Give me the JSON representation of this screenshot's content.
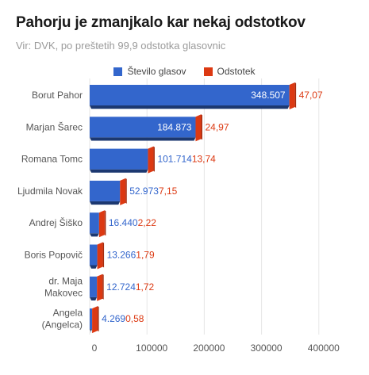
{
  "title": "Pahorju je zmanjkalo kar nekaj odstotkov",
  "subtitle": "Vir: DVK, po preštetih 99,9 odstotka glasovnic",
  "legend": [
    {
      "label": "Število glasov",
      "color": "#3366cc"
    },
    {
      "label": "Odstotek",
      "color": "#dc3912"
    }
  ],
  "chart_data": {
    "type": "bar",
    "orientation": "horizontal",
    "categories": [
      [
        "Borut Pahor"
      ],
      [
        "Marjan Šarec"
      ],
      [
        "Romana Tomc"
      ],
      [
        "Ljudmila Novak"
      ],
      [
        "Andrej Šiško"
      ],
      [
        "Boris Popovič"
      ],
      [
        "dr. Maja",
        "Makovec"
      ],
      [
        "Angela",
        "(Angelca)"
      ]
    ],
    "series": [
      {
        "name": "Število glasov",
        "color": "#3366cc",
        "values": [
          348507,
          184873,
          101714,
          52973,
          16440,
          13266,
          12724,
          4269
        ],
        "labels": [
          "348.507",
          "184.873",
          "101.714",
          "52.973",
          "16.440",
          "13.266",
          "12.724",
          "4.269"
        ]
      },
      {
        "name": "Odstotek",
        "color": "#dc3912",
        "values": [
          47.07,
          24.97,
          13.74,
          7.15,
          2.22,
          1.79,
          1.72,
          0.58
        ],
        "labels": [
          "47,07",
          "24,97",
          "13,74",
          "7,15",
          "2,22",
          "1,79",
          "1,72",
          "0,58"
        ]
      }
    ],
    "xlim": [
      0,
      400000
    ],
    "xticks": [
      0,
      100000,
      200000,
      300000,
      400000
    ],
    "xtick_labels": [
      "0",
      "100000",
      "200000",
      "300000",
      "400000"
    ],
    "grid": true,
    "legend_position": "top",
    "style": "3d"
  }
}
